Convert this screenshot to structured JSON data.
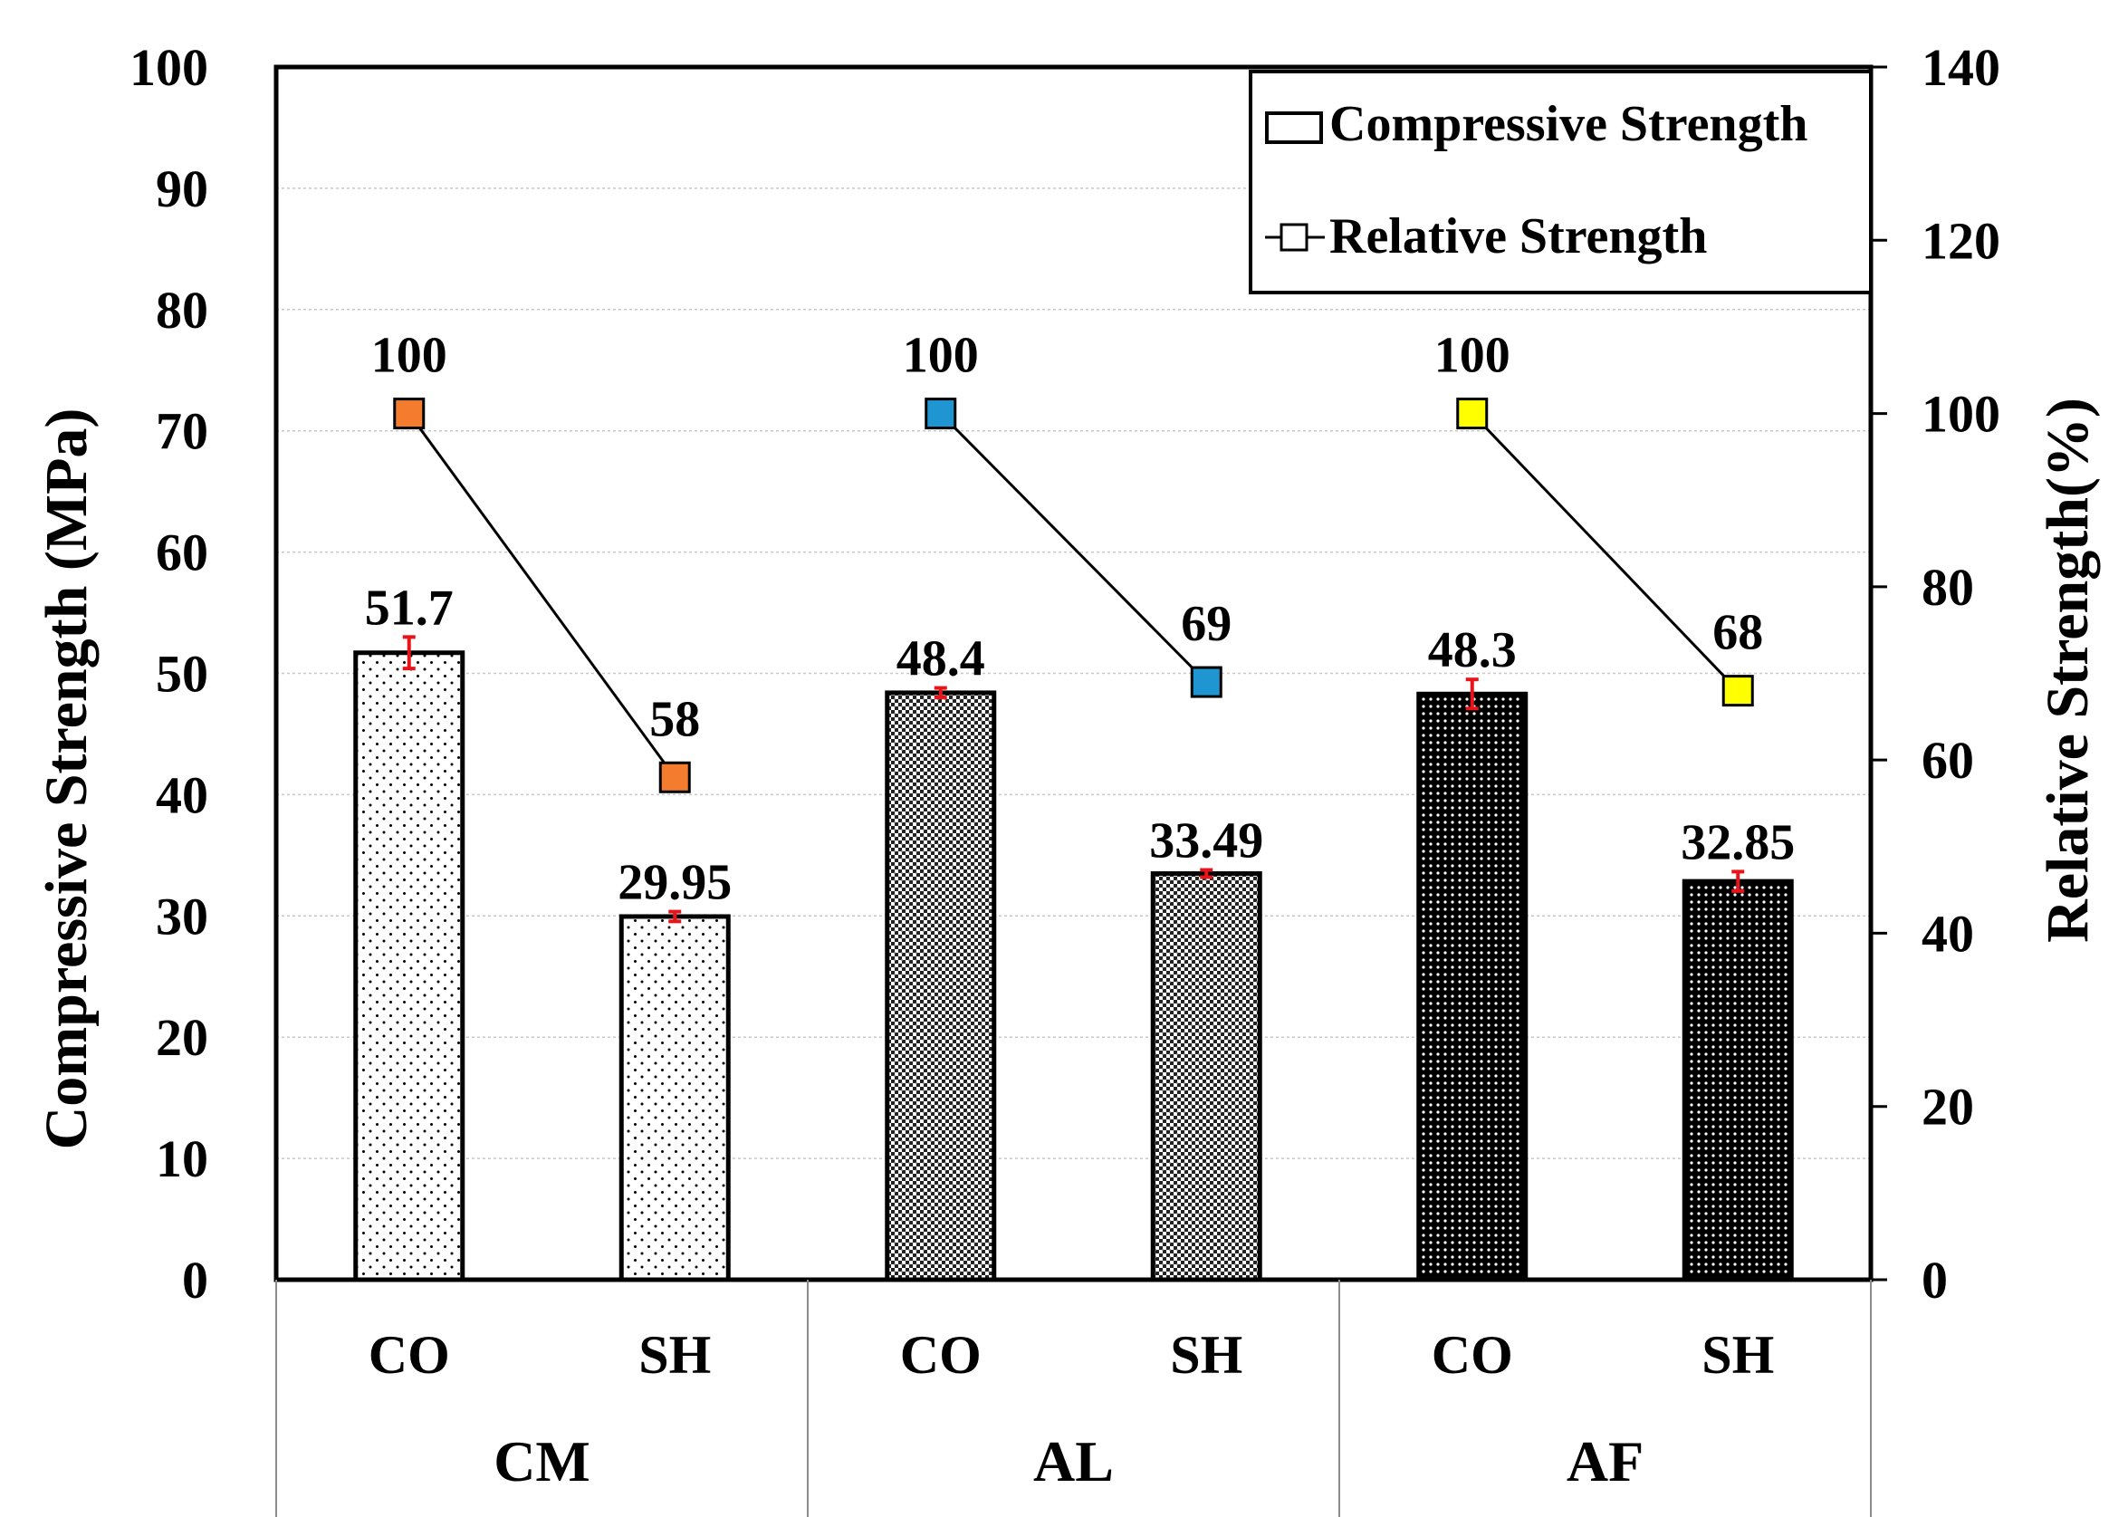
{
  "chart_data": {
    "type": "bar",
    "groups": [
      {
        "name": "CM",
        "categories": [
          "CO",
          "SH"
        ]
      },
      {
        "name": "AL",
        "categories": [
          "CO",
          "SH"
        ]
      },
      {
        "name": "AF",
        "categories": [
          "CO",
          "SH"
        ]
      }
    ],
    "categories": [
      "CO",
      "SH",
      "CO",
      "SH",
      "CO",
      "SH"
    ],
    "series": [
      {
        "name": "Compressive Strength",
        "type": "bar",
        "axis": "left",
        "values": [
          51.7,
          29.95,
          48.4,
          33.49,
          48.3,
          32.85
        ],
        "labels": [
          "51.7",
          "29.95",
          "48.4",
          "33.49",
          "48.3",
          "32.85"
        ],
        "error": [
          1.3,
          0.4,
          0.4,
          0.3,
          1.2,
          0.8
        ],
        "patterns": [
          "sparse-dots",
          "sparse-dots",
          "checker",
          "checker",
          "dense-dots",
          "dense-dots"
        ]
      },
      {
        "name": "Relative Strength",
        "type": "line",
        "axis": "right",
        "values": [
          100,
          58,
          100,
          69,
          100,
          68
        ],
        "labels": [
          "100",
          "58",
          "100",
          "69",
          "100",
          "68"
        ],
        "marker_colors": [
          "#f47c2e",
          "#f47c2e",
          "#1f95d2",
          "#1f95d2",
          "#ffff00",
          "#ffff00"
        ]
      }
    ],
    "ylabel": "Compressive Strength (MPa)",
    "ylabel_right": "Relative Strength(%)",
    "ylim": [
      0,
      100
    ],
    "ylim_right": [
      0,
      140
    ],
    "yticks": [
      "0",
      "10",
      "20",
      "30",
      "40",
      "50",
      "60",
      "70",
      "80",
      "90",
      "100"
    ],
    "yticks_right": [
      "0",
      "20",
      "40",
      "60",
      "80",
      "100",
      "120",
      "140"
    ],
    "grid": true,
    "legend_position": "top-right",
    "error_bar_color": "#e8141b"
  }
}
